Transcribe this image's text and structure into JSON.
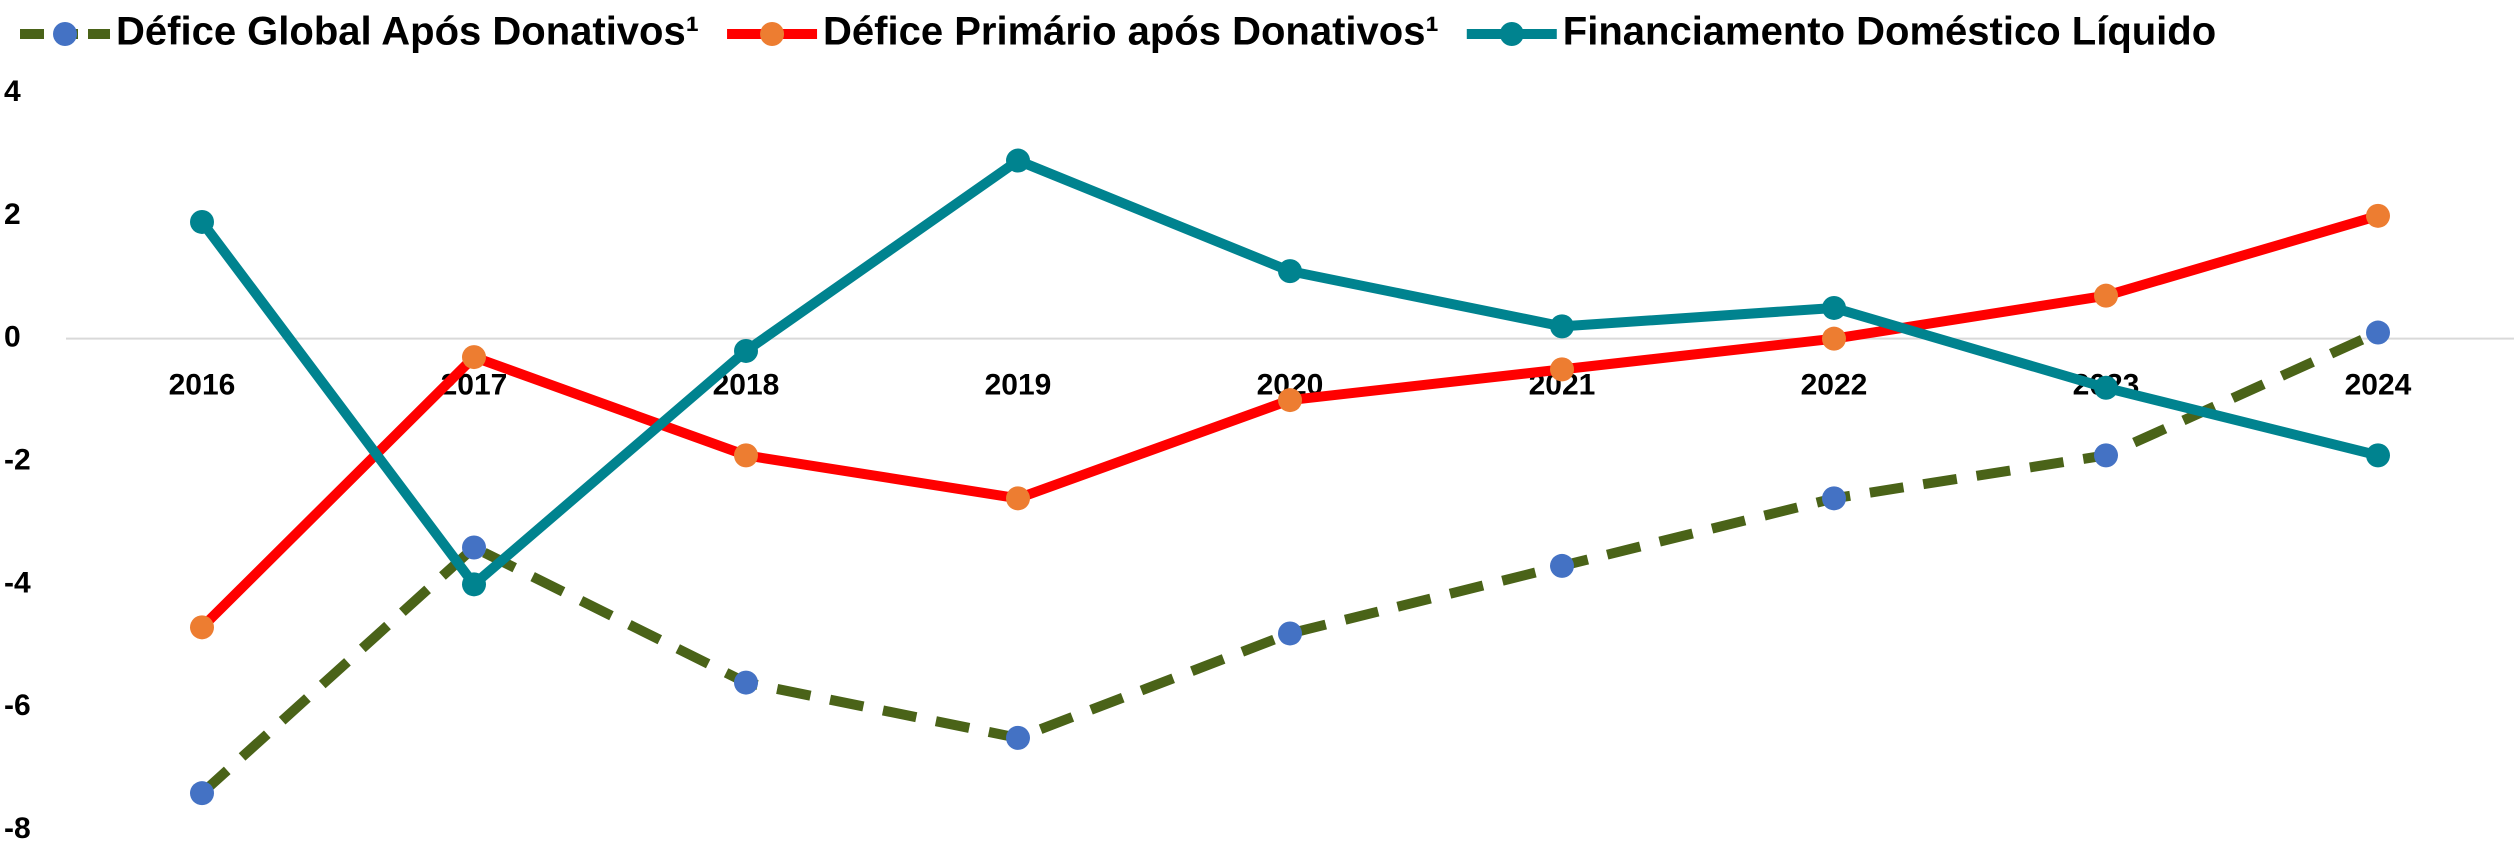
{
  "chart_data": {
    "type": "line",
    "categories": [
      "2016",
      "2017",
      "2018",
      "2019",
      "2020",
      "2021",
      "2022",
      "2023",
      "2024"
    ],
    "series": [
      {
        "name": "Défice Global Após Donativos¹",
        "color": "#4a6318",
        "marker_color": "#4472c4",
        "dashed": true,
        "values": [
          -7.4,
          -3.4,
          -5.6,
          -6.5,
          -4.8,
          -3.7,
          -2.6,
          -1.9,
          0.1
        ]
      },
      {
        "name": "Défice Primário após Donativos¹",
        "color": "#ff0000",
        "marker_color": "#ed7d31",
        "dashed": false,
        "values": [
          -4.7,
          -0.3,
          -1.9,
          -2.6,
          -1.0,
          -0.5,
          0.0,
          0.7,
          2.0
        ]
      },
      {
        "name": "Financiamento Doméstico Líquido",
        "color": "#00838f",
        "marker_color": "#00838f",
        "dashed": false,
        "values": [
          1.9,
          -4.0,
          -0.2,
          2.9,
          1.1,
          0.2,
          0.5,
          -0.8,
          -1.9
        ]
      }
    ],
    "ylim": [
      -8,
      4
    ],
    "yticks": [
      -8,
      -6,
      -4,
      -2,
      0,
      2,
      4
    ],
    "zero_line": true,
    "legend": "top"
  }
}
